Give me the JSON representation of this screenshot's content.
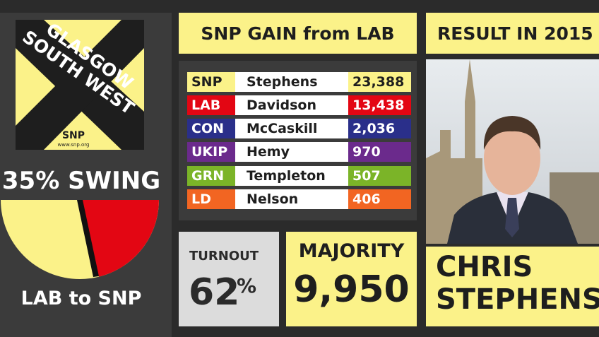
{
  "region": {
    "name_line1": "GLASGOW",
    "name_line2": "SOUTH WEST",
    "party_logo": "SNP",
    "url": "www.snp.org"
  },
  "swing": {
    "label": "35% SWING",
    "direction": "LAB to SNP"
  },
  "headline": "SNP GAIN from LAB",
  "results": [
    {
      "party": "SNP",
      "candidate": "Stephens",
      "votes": "23,388"
    },
    {
      "party": "LAB",
      "candidate": "Davidson",
      "votes": "13,438"
    },
    {
      "party": "CON",
      "candidate": "McCaskill",
      "votes": "2,036"
    },
    {
      "party": "UKIP",
      "candidate": "Hemy",
      "votes": "970"
    },
    {
      "party": "GRN",
      "candidate": "Templeton",
      "votes": "507"
    },
    {
      "party": "LD",
      "candidate": "Nelson",
      "votes": "406"
    }
  ],
  "turnout": {
    "label": "TURNOUT",
    "value": "62",
    "unit": "%"
  },
  "majority": {
    "label": "MAJORITY",
    "value": "9,950"
  },
  "winner": {
    "heading": "RESULT IN 2015",
    "first_name": "CHRIS",
    "last_name": "STEPHENS"
  }
}
